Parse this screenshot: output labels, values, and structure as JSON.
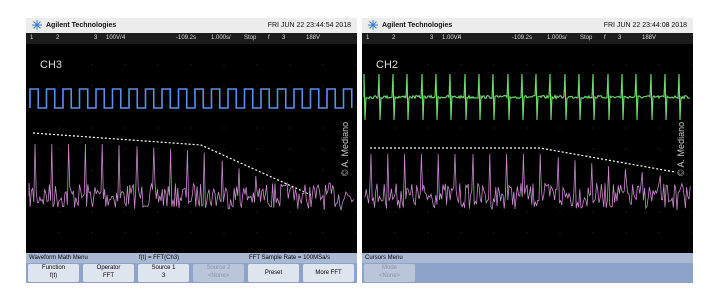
{
  "panels": [
    {
      "header": {
        "brand": "Agilent Technologies",
        "datetime": "FRI JUN 22 23:44:54 2018"
      },
      "status": [
        "1",
        "2",
        "3",
        "100V/",
        "4",
        "-109.2s",
        "1.000s/",
        "Stop",
        "f",
        "3",
        "188V"
      ],
      "channel_label": "CH3",
      "watermark": "© A. Mediano",
      "menu": {
        "title": "Waveform Math Menu",
        "info": [
          "f(t) = FFT(Ch3)",
          "FFT Sample Rate = 100MSa/s"
        ],
        "softkeys": [
          {
            "label": "Function",
            "value": "f(t)"
          },
          {
            "label": "Operator",
            "value": "FFT"
          },
          {
            "label": "Source 1",
            "value": "3"
          },
          {
            "label": "Source 2",
            "value": "<None>"
          },
          {
            "label": "Preset"
          },
          {
            "label": "More FFT"
          }
        ]
      }
    },
    {
      "header": {
        "brand": "Agilent Technologies",
        "datetime": "FRI JUN 22 23:44:08 2018"
      },
      "status": [
        "1",
        "2",
        "3",
        "1.00V/",
        "4",
        "-109.2s",
        "1.000s/",
        "Stop",
        "f",
        "3",
        "188V"
      ],
      "channel_label": "CH2",
      "watermark": "© A. Mediano",
      "menu": {
        "title": "Cursors Menu",
        "softkeys": [
          {
            "label": "Mode",
            "value": "<None>"
          }
        ]
      }
    }
  ]
}
